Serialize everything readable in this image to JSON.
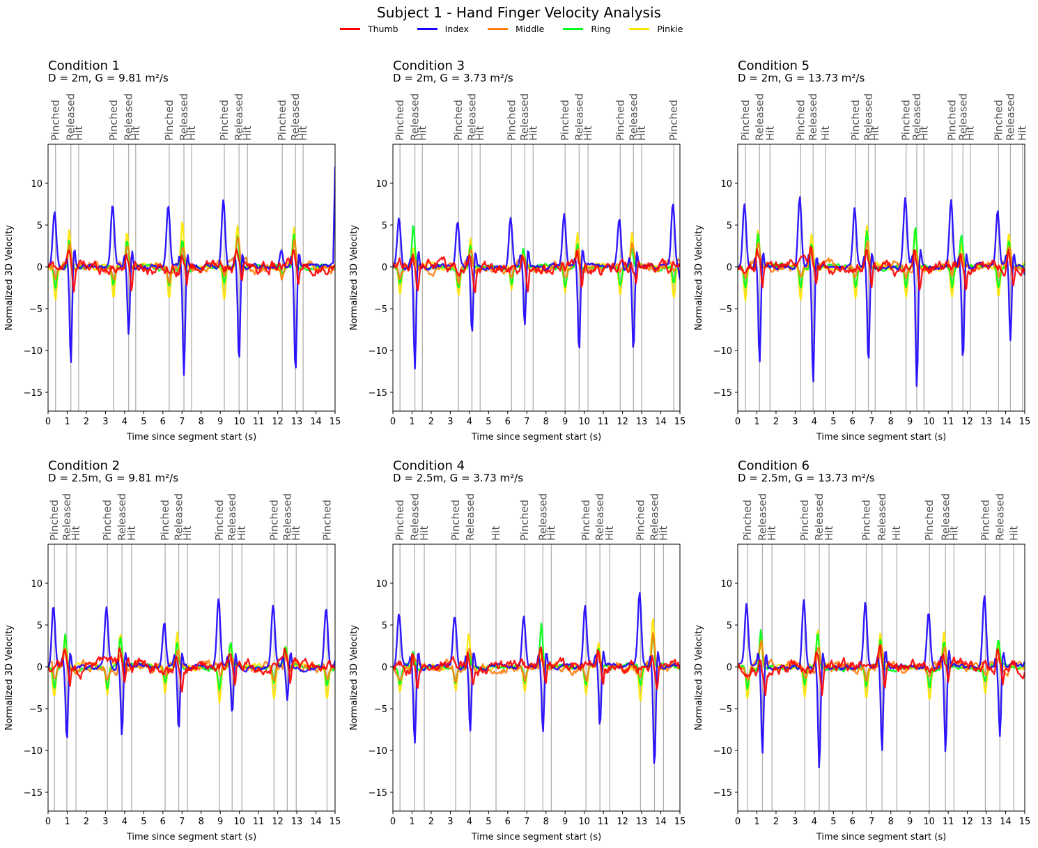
{
  "chart_data": {
    "type": "line",
    "title": "Subject 1 - Hand Finger Velocity Analysis",
    "legend_placement": "top-center",
    "series_meta": [
      {
        "name": "Thumb",
        "color": "#ff0000"
      },
      {
        "name": "Index",
        "color": "#1a00ff"
      },
      {
        "name": "Middle",
        "color": "#ff7f0e"
      },
      {
        "name": "Ring",
        "color": "#00ff1a"
      },
      {
        "name": "Pinkie",
        "color": "#ffe600"
      }
    ],
    "event_line_color": "#b0b0b0",
    "event_label_color": "#555555",
    "xlabel": "Time since segment start (s)",
    "ylabel": "Normalized 3D Velocity",
    "xlim": [
      0,
      15
    ],
    "ylim": [
      -17.3,
      14.6
    ],
    "xticks": [
      "0",
      "1",
      "2",
      "3",
      "4",
      "5",
      "6",
      "7",
      "8",
      "9",
      "10",
      "11",
      "12",
      "13",
      "14",
      "15"
    ],
    "yticks": [
      "10",
      "5",
      "0",
      "−10",
      "−5",
      "−15"
    ],
    "ytick_values": [
      10,
      5,
      0,
      -10,
      -5,
      -15
    ],
    "grid": false,
    "panels": [
      {
        "title": "Condition 1",
        "subtitle": "D = 2m, G = 9.81 m²/s",
        "events": [
          {
            "label": "Pinched",
            "t": 0.39
          },
          {
            "label": "Released",
            "t": 1.19
          },
          {
            "label": "Hit",
            "t": 1.6
          },
          {
            "label": "Pinched",
            "t": 3.42
          },
          {
            "label": "Released",
            "t": 4.21
          },
          {
            "label": "Hit",
            "t": 4.58
          },
          {
            "label": "Pinched",
            "t": 6.33
          },
          {
            "label": "Released",
            "t": 7.1
          },
          {
            "label": "Hit",
            "t": 7.5
          },
          {
            "label": "Pinched",
            "t": 9.21
          },
          {
            "label": "Released",
            "t": 9.98
          },
          {
            "label": "Hit",
            "t": 10.42
          },
          {
            "label": "Pinched",
            "t": 12.24
          },
          {
            "label": "Released",
            "t": 12.93
          },
          {
            "label": "Hit",
            "t": 13.33
          }
        ],
        "index_peaks": [
          6.6,
          7.4,
          7.4,
          8.2,
          1.9
        ],
        "index_dips": [
          -11.7,
          -8.4,
          -12.8,
          -11.4,
          -12.8
        ],
        "end_value_index": 12.0,
        "ring_pos": [
          3.3,
          3.2,
          3.6,
          3.5,
          4.3
        ],
        "pinkie_pos": [
          4.6,
          4.3,
          5.4,
          5.1,
          4.7
        ],
        "pinkie_neg": [
          -3.7,
          -3.7,
          -3.7,
          -3.7,
          -1.2
        ]
      },
      {
        "title": "Condition 2",
        "subtitle": "D = 2.5m, G = 9.81 m²/s",
        "events": [
          {
            "label": "Pinched",
            "t": 0.33
          },
          {
            "label": "Released",
            "t": 0.98
          },
          {
            "label": "Hit",
            "t": 1.46
          },
          {
            "label": "Pinched",
            "t": 3.1
          },
          {
            "label": "Released",
            "t": 3.86
          },
          {
            "label": "Hit",
            "t": 4.37
          },
          {
            "label": "Pinched",
            "t": 6.12
          },
          {
            "label": "Released",
            "t": 6.83
          },
          {
            "label": "Hit",
            "t": 7.29
          },
          {
            "label": "Pinched",
            "t": 8.96
          },
          {
            "label": "Released",
            "t": 9.62
          },
          {
            "label": "Hit",
            "t": 10.13
          },
          {
            "label": "Pinched",
            "t": 11.81
          },
          {
            "label": "Released",
            "t": 12.5
          },
          {
            "label": "Hit",
            "t": 12.97
          },
          {
            "label": "Pinched",
            "t": 14.58
          }
        ],
        "index_peaks": [
          7.3,
          7.1,
          5.5,
          8.1,
          7.1,
          7.1
        ],
        "index_dips": [
          -8.6,
          -8.2,
          -7.7,
          -5.5,
          -3.8,
          0
        ],
        "end_value_index": 0.8,
        "ring_pos": [
          4.1,
          3.2,
          3.1,
          3.0,
          2.3,
          0
        ],
        "pinkie_pos": [
          3.5,
          3.5,
          4.0,
          2.5,
          2.0,
          0
        ],
        "pinkie_neg": [
          -3.6,
          -3.6,
          -3.3,
          -4.0,
          -3.6,
          -3.6
        ]
      },
      {
        "title": "Condition 3",
        "subtitle": "D = 2m, G = 3.73 m²/s",
        "events": [
          {
            "label": "Pinched",
            "t": 0.37
          },
          {
            "label": "Released",
            "t": 1.15
          },
          {
            "label": "Hit",
            "t": 1.54
          },
          {
            "label": "Pinched",
            "t": 3.43
          },
          {
            "label": "Released",
            "t": 4.13
          },
          {
            "label": "Hit",
            "t": 4.56
          },
          {
            "label": "Pinched",
            "t": 6.2
          },
          {
            "label": "Released",
            "t": 6.89
          },
          {
            "label": "Hit",
            "t": 7.33
          },
          {
            "label": "Pinched",
            "t": 9.0
          },
          {
            "label": "Released",
            "t": 9.73
          },
          {
            "label": "Hit",
            "t": 10.2
          },
          {
            "label": "Pinched",
            "t": 11.88
          },
          {
            "label": "Released",
            "t": 12.57
          },
          {
            "label": "Hit",
            "t": 13.0
          },
          {
            "label": "Pinched",
            "t": 14.68
          }
        ],
        "index_peaks": [
          6.0,
          5.6,
          5.9,
          6.4,
          6.0,
          7.6
        ],
        "index_dips": [
          -12.1,
          -8.3,
          -7.0,
          -10.2,
          -10.2,
          0
        ],
        "end_value_index": -1.5,
        "ring_pos": [
          4.9,
          2.4,
          2.1,
          2.8,
          2.3,
          0
        ],
        "pinkie_pos": [
          2.5,
          3.6,
          1.8,
          4.2,
          4.2,
          0
        ],
        "pinkie_neg": [
          -3.3,
          -3.3,
          -3.0,
          -3.3,
          -3.3,
          -3.6
        ]
      },
      {
        "title": "Condition 4",
        "subtitle": "D = 2.5m, G = 3.73 m²/s",
        "events": [
          {
            "label": "Pinched",
            "t": 0.37
          },
          {
            "label": "Released",
            "t": 1.14
          },
          {
            "label": "Hit",
            "t": 1.64
          },
          {
            "label": "Pinched",
            "t": 3.28
          },
          {
            "label": "Released",
            "t": 4.04
          },
          {
            "label": "Hit",
            "t": 5.39
          },
          {
            "label": "Pinched",
            "t": 6.89
          },
          {
            "label": "Released",
            "t": 7.84
          },
          {
            "label": "Hit",
            "t": 8.28
          },
          {
            "label": "Pinched",
            "t": 10.09
          },
          {
            "label": "Released",
            "t": 10.82
          },
          {
            "label": "Hit",
            "t": 11.33
          },
          {
            "label": "Pinched",
            "t": 12.94
          },
          {
            "label": "Released",
            "t": 13.67
          },
          {
            "label": "Hit",
            "t": 14.14
          }
        ],
        "index_peaks": [
          6.5,
          6.3,
          6.1,
          7.5,
          8.5
        ],
        "index_dips": [
          -9.2,
          -8.0,
          -7.8,
          -7.1,
          -11.9
        ],
        "end_value_index": 0.0,
        "ring_pos": [
          2.0,
          2.0,
          5.2,
          2.0,
          3.8
        ],
        "pinkie_pos": [
          1.5,
          4.0,
          2.0,
          2.5,
          5.8
        ],
        "pinkie_neg": [
          -3.0,
          -3.0,
          -3.3,
          -3.3,
          -4.0
        ]
      },
      {
        "title": "Condition 5",
        "subtitle": "D = 2m, G = 13.73 m²/s",
        "events": [
          {
            "label": "Pinched",
            "t": 0.4
          },
          {
            "label": "Released",
            "t": 1.14
          },
          {
            "label": "Hit",
            "t": 1.69
          },
          {
            "label": "Pinched",
            "t": 3.29
          },
          {
            "label": "Released",
            "t": 3.94
          },
          {
            "label": "Hit",
            "t": 4.59
          },
          {
            "label": "Pinched",
            "t": 6.16
          },
          {
            "label": "Released",
            "t": 6.83
          },
          {
            "label": "Hit",
            "t": 7.18
          },
          {
            "label": "Pinched",
            "t": 8.8
          },
          {
            "label": "Released",
            "t": 9.36
          },
          {
            "label": "Hit",
            "t": 9.73
          },
          {
            "label": "Pinched",
            "t": 11.2
          },
          {
            "label": "Released",
            "t": 11.77
          },
          {
            "label": "Hit",
            "t": 12.15
          },
          {
            "label": "Pinched",
            "t": 13.63
          },
          {
            "label": "Released",
            "t": 14.25
          },
          {
            "label": "Hit",
            "t": 14.88
          }
        ],
        "index_peaks": [
          7.9,
          8.6,
          6.7,
          8.3,
          8.1,
          6.9
        ],
        "index_dips": [
          -11.4,
          -13.6,
          -11.9,
          -14.5,
          -10.9,
          -8.8
        ],
        "end_value_index": -1.0,
        "ring_pos": [
          4.2,
          3.0,
          4.2,
          5.0,
          3.5,
          3.3
        ],
        "pinkie_pos": [
          4.7,
          4.3,
          4.9,
          4.3,
          2.8,
          4.2
        ],
        "pinkie_neg": [
          -4.2,
          -3.8,
          -3.6,
          -3.9,
          -3.8,
          -3.5
        ]
      },
      {
        "title": "Condition 6",
        "subtitle": "D = 2.5m, G = 13.73 m²/s",
        "events": [
          {
            "label": "Pinched",
            "t": 0.51
          },
          {
            "label": "Released",
            "t": 1.29
          },
          {
            "label": "Hit",
            "t": 1.79
          },
          {
            "label": "Pinched",
            "t": 3.5
          },
          {
            "label": "Released",
            "t": 4.26
          },
          {
            "label": "Hit",
            "t": 4.77
          },
          {
            "label": "Pinched",
            "t": 6.72
          },
          {
            "label": "Released",
            "t": 7.54
          },
          {
            "label": "Hit",
            "t": 8.31
          },
          {
            "label": "Pinched",
            "t": 10.02
          },
          {
            "label": "Released",
            "t": 10.86
          },
          {
            "label": "Hit",
            "t": 11.3
          },
          {
            "label": "Pinched",
            "t": 12.94
          },
          {
            "label": "Released",
            "t": 13.7
          },
          {
            "label": "Hit",
            "t": 14.43
          }
        ],
        "index_peaks": [
          7.2,
          8.4,
          8.1,
          6.5,
          8.6
        ],
        "index_dips": [
          -10.4,
          -11.9,
          -10.2,
          -10.3,
          -7.9
        ],
        "end_value_index": 0.6,
        "ring_pos": [
          4.7,
          3.8,
          3.4,
          3.0,
          3.3
        ],
        "pinkie_pos": [
          4.0,
          4.6,
          3.7,
          4.3,
          2.6
        ],
        "pinkie_neg": [
          -3.8,
          -3.8,
          -3.6,
          -3.8,
          -3.0
        ]
      }
    ]
  }
}
